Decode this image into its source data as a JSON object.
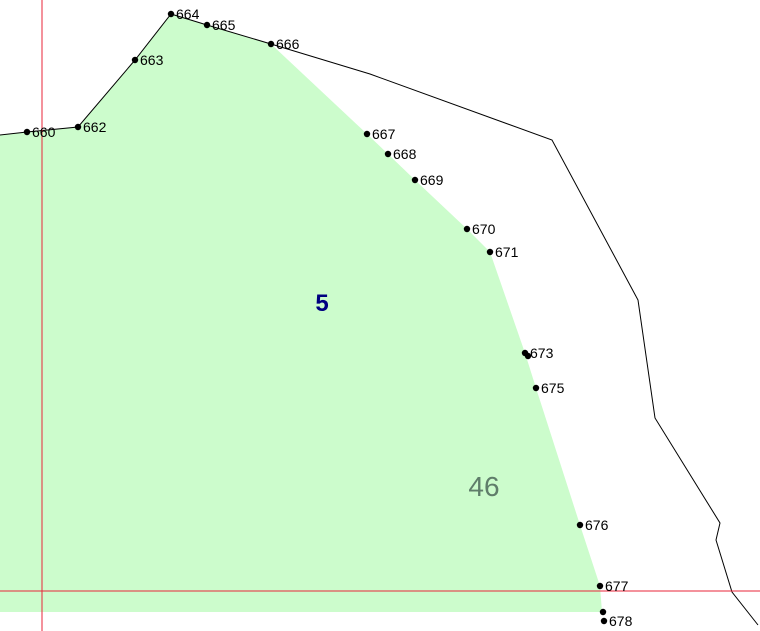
{
  "map": {
    "parcel_number": "5",
    "area_label": "46",
    "colors": {
      "parcel_fill": "#ccfccc",
      "parcel_label": "#000080",
      "area_label": "#5f7d6a",
      "grid_line": "#e8263a",
      "boundary": "#000000",
      "point": "#000000"
    },
    "points": [
      {
        "label": "660"
      },
      {
        "label": "662"
      },
      {
        "label": "663"
      },
      {
        "label": "664"
      },
      {
        "label": "665"
      },
      {
        "label": "666"
      },
      {
        "label": "667"
      },
      {
        "label": "668"
      },
      {
        "label": "669"
      },
      {
        "label": "670"
      },
      {
        "label": "671"
      },
      {
        "label": "673"
      },
      {
        "label": "675"
      },
      {
        "label": "676"
      },
      {
        "label": "677"
      },
      {
        "label": "678"
      }
    ]
  }
}
